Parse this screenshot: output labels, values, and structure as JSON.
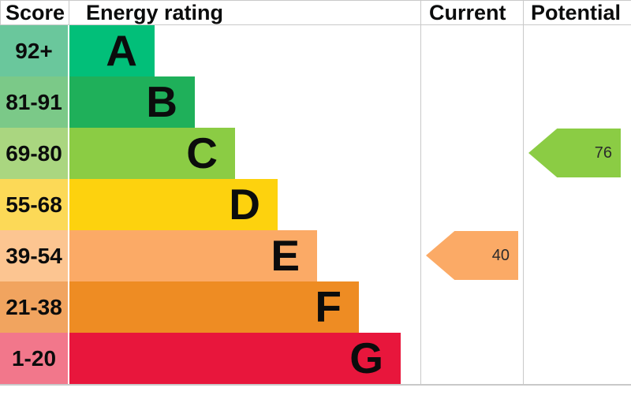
{
  "header": {
    "score": "Score",
    "energy_rating": "Energy rating",
    "current": "Current",
    "potential": "Potential"
  },
  "chart_data": {
    "type": "bar",
    "title": "Energy rating",
    "columns": [
      "Score",
      "Energy rating",
      "Current",
      "Potential"
    ],
    "bands": [
      {
        "letter": "A",
        "score_range": "92+",
        "bar_color": "#02bf79",
        "score_color": "#6ac79c"
      },
      {
        "letter": "B",
        "score_range": "81-91",
        "bar_color": "#1fb05a",
        "score_color": "#7bc988"
      },
      {
        "letter": "C",
        "score_range": "69-80",
        "bar_color": "#8bcc44",
        "score_color": "#aad680"
      },
      {
        "letter": "D",
        "score_range": "55-68",
        "bar_color": "#fdd20e",
        "score_color": "#fcd957"
      },
      {
        "letter": "E",
        "score_range": "39-54",
        "bar_color": "#fbaa66",
        "score_color": "#fcc591"
      },
      {
        "letter": "F",
        "score_range": "21-38",
        "bar_color": "#ee8c23",
        "score_color": "#f1a45f"
      },
      {
        "letter": "G",
        "score_range": "1-20",
        "bar_color": "#e8163c",
        "score_color": "#f2778b"
      }
    ],
    "current": {
      "value": 40,
      "band": "E",
      "color": "#fbaa66"
    },
    "potential": {
      "value": 76,
      "band": "C",
      "color": "#8bcc44"
    }
  }
}
